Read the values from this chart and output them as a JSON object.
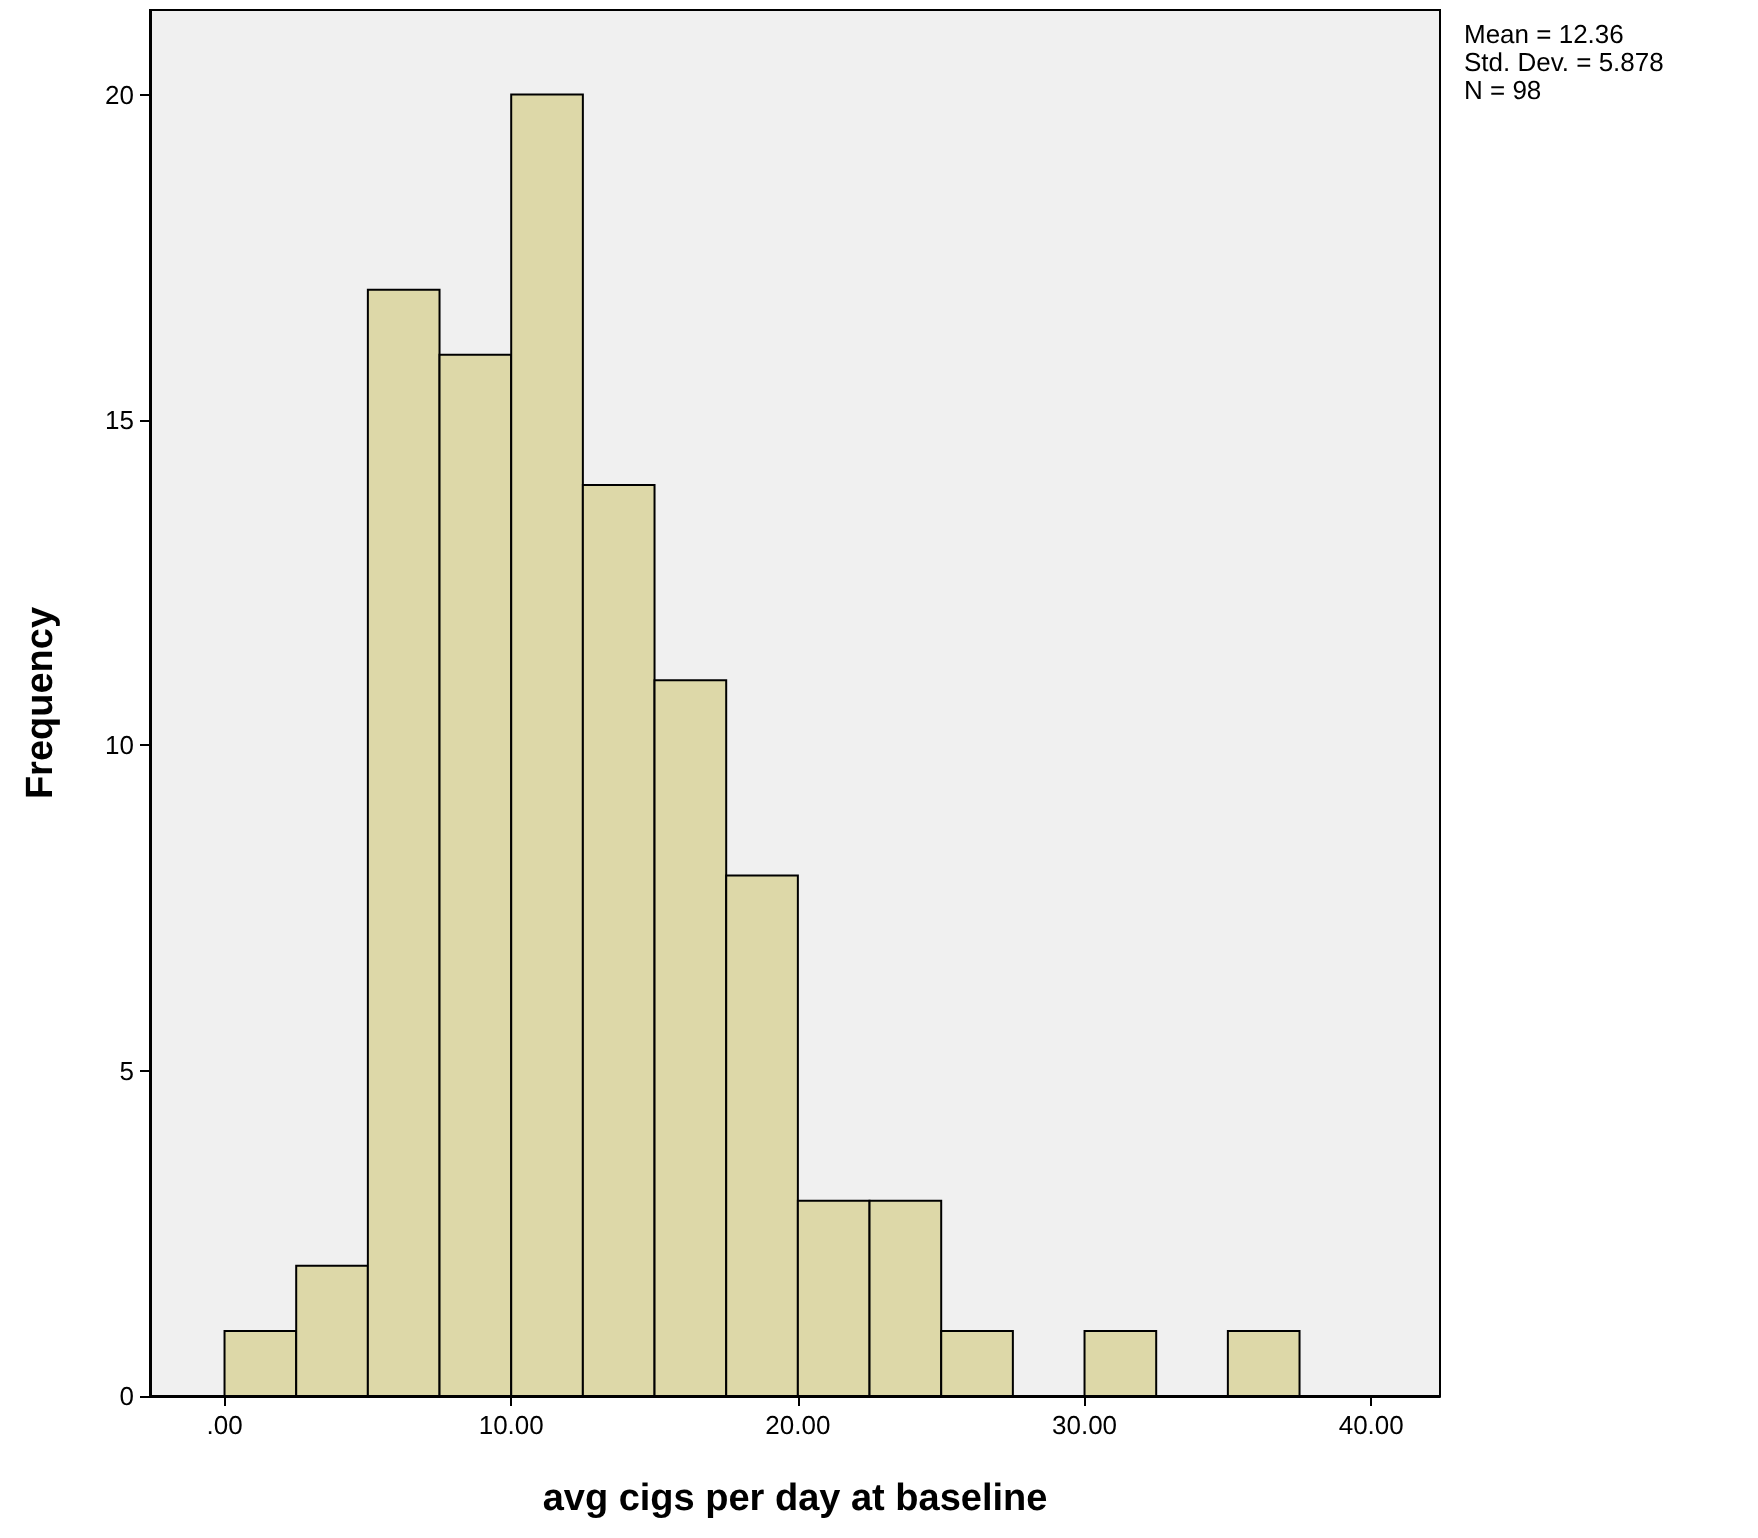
{
  "chart_data": {
    "type": "histogram",
    "xlabel": "avg cigs per day at baseline",
    "ylabel": "Frequency",
    "bins": [
      0,
      2.5,
      5,
      7.5,
      10,
      12.5,
      15,
      17.5,
      20,
      22.5,
      25,
      27.5,
      30,
      32.5,
      35,
      37.5
    ],
    "values": [
      1,
      2,
      17,
      16,
      20,
      14,
      11,
      8,
      3,
      3,
      1,
      0,
      1,
      0,
      1
    ],
    "color": "#ddd8a8",
    "xlim": [
      -2.6,
      42.4
    ],
    "xticks": [
      {
        "value": 0,
        "label": ".00"
      },
      {
        "value": 10,
        "label": "10.00"
      },
      {
        "value": 20,
        "label": "20.00"
      },
      {
        "value": 30,
        "label": "30.00"
      },
      {
        "value": 40,
        "label": "40.00"
      }
    ],
    "ylim": [
      0,
      21.3
    ],
    "yticks": [
      0,
      5,
      10,
      15,
      20
    ],
    "grid": false,
    "annotations": [
      "Mean = 12.36",
      "Std. Dev. = 5.878",
      "N = 98"
    ]
  }
}
